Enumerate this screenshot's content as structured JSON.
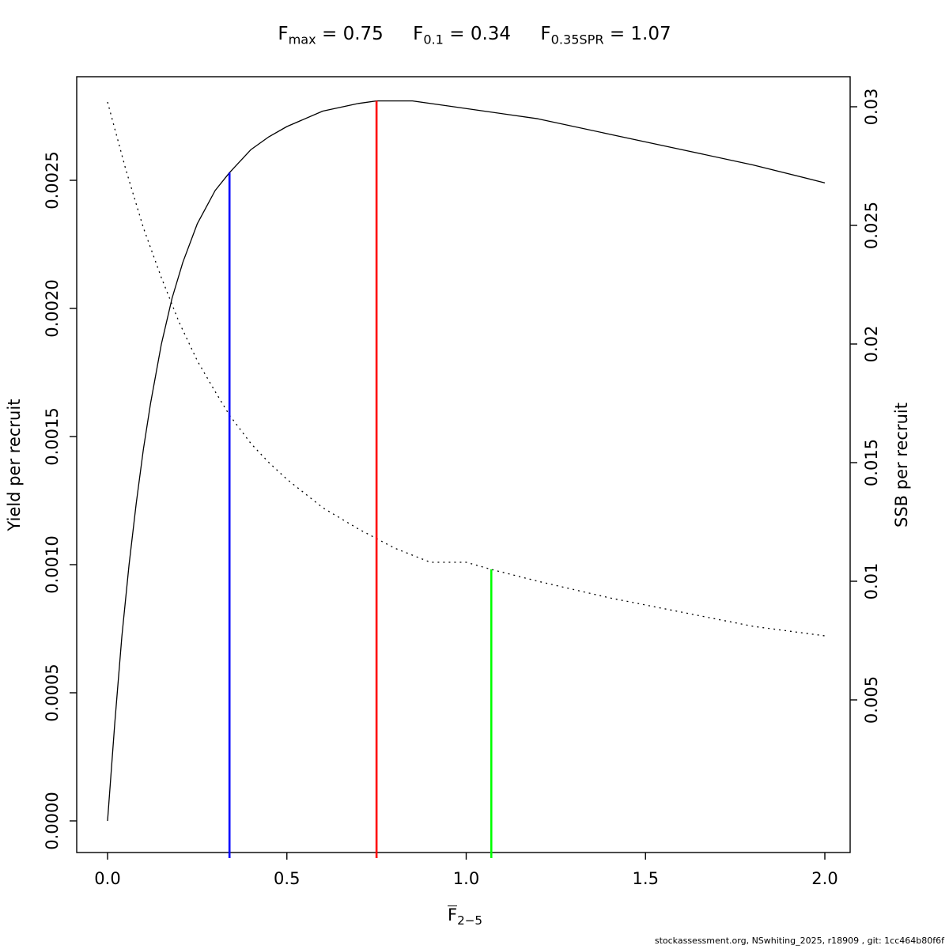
{
  "title": {
    "parts": [
      {
        "base": "F",
        "sub": "max",
        "eq": " = 0.75"
      },
      {
        "base": "F",
        "sub": "0.1",
        "eq": " = 0.34"
      },
      {
        "base": "F",
        "sub": "0.35SPR",
        "eq": " = 1.07"
      }
    ]
  },
  "footer": {
    "text": "stockassessment.org, NSwhiting_2025, r18909 , git: 1cc464b80f6f"
  },
  "chart_data": {
    "type": "line",
    "title": "Fmax = 0.75    F0.1 = 0.34    F0.35SPR = 1.07",
    "xlabel": {
      "base": "F",
      "sub": "2−5"
    },
    "ylabel_left": "Yield per recruit",
    "ylabel_right": "SSB per recruit",
    "x_axis": {
      "range": [
        0,
        2
      ],
      "ticks": [
        0,
        0.5,
        1.0,
        1.5,
        2.0
      ],
      "tick_labels": [
        "0.0",
        "0.5",
        "1.0",
        "1.5",
        "2.0"
      ]
    },
    "y_axis_left": {
      "range": [
        0,
        0.0028
      ],
      "ticks": [
        0,
        0.0005,
        0.001,
        0.0015,
        0.002,
        0.0025
      ],
      "tick_labels": [
        "0.0000",
        "0.0005",
        "0.0010",
        "0.0015",
        "0.0020",
        "0.0025"
      ]
    },
    "y_axis_right": {
      "range": [
        0.0077,
        0.0302
      ],
      "ticks": [
        0.005,
        0.01,
        0.015,
        0.02,
        0.025,
        0.03
      ],
      "tick_labels": [
        "0.005",
        "0.01",
        "0.015",
        "0.02",
        "0.025",
        "0.03"
      ]
    },
    "grid": false,
    "legend": "none",
    "series": [
      {
        "name": "Yield per recruit",
        "axis": "left",
        "style": "solid",
        "color": "#000000",
        "points": [
          [
            0,
            0
          ],
          [
            0.02,
            0.00038
          ],
          [
            0.04,
            0.00072
          ],
          [
            0.06,
            0.001
          ],
          [
            0.08,
            0.00124
          ],
          [
            0.1,
            0.00145
          ],
          [
            0.12,
            0.00163
          ],
          [
            0.15,
            0.00186
          ],
          [
            0.18,
            0.00204
          ],
          [
            0.21,
            0.00218
          ],
          [
            0.25,
            0.00233
          ],
          [
            0.3,
            0.00246
          ],
          [
            0.34,
            0.00253
          ],
          [
            0.4,
            0.00262
          ],
          [
            0.45,
            0.00267
          ],
          [
            0.5,
            0.00271
          ],
          [
            0.6,
            0.00277
          ],
          [
            0.7,
            0.0028
          ],
          [
            0.75,
            0.00281
          ],
          [
            0.85,
            0.00281
          ],
          [
            0.95,
            0.00279
          ],
          [
            1.05,
            0.00277
          ],
          [
            1.2,
            0.00274
          ],
          [
            1.4,
            0.00268
          ],
          [
            1.6,
            0.00262
          ],
          [
            1.8,
            0.00256
          ],
          [
            2.0,
            0.00249
          ]
        ]
      },
      {
        "name": "SSB per recruit",
        "axis": "right",
        "style": "dotted",
        "color": "#000000",
        "points": [
          [
            0,
            0.0302
          ],
          [
            0.05,
            0.0274
          ],
          [
            0.1,
            0.0249
          ],
          [
            0.15,
            0.0228
          ],
          [
            0.2,
            0.0209
          ],
          [
            0.25,
            0.0193
          ],
          [
            0.3,
            0.018
          ],
          [
            0.34,
            0.017
          ],
          [
            0.4,
            0.0158
          ],
          [
            0.45,
            0.015
          ],
          [
            0.5,
            0.0143
          ],
          [
            0.6,
            0.0131
          ],
          [
            0.7,
            0.0122
          ],
          [
            0.75,
            0.0118
          ],
          [
            0.8,
            0.0114
          ],
          [
            0.9,
            0.0108
          ],
          [
            1.0,
            0.0108
          ],
          [
            1.07,
            0.0105
          ],
          [
            1.2,
            0.01
          ],
          [
            1.4,
            0.0093
          ],
          [
            1.6,
            0.0087
          ],
          [
            1.8,
            0.0081
          ],
          [
            2.0,
            0.0077
          ]
        ]
      }
    ],
    "ref_lines": [
      {
        "name": "f01",
        "label": "F0.1",
        "x": 0.34,
        "top_value": 0.00253,
        "axis": "left",
        "color": "#0000ff"
      },
      {
        "name": "fmax",
        "label": "Fmax",
        "x": 0.75,
        "top_value": 0.00281,
        "axis": "left",
        "color": "#ff0000"
      },
      {
        "name": "f035spr",
        "label": "F0.35SPR",
        "x": 1.07,
        "top_value": 0.0105,
        "axis": "right",
        "color": "#00ff00"
      }
    ]
  }
}
